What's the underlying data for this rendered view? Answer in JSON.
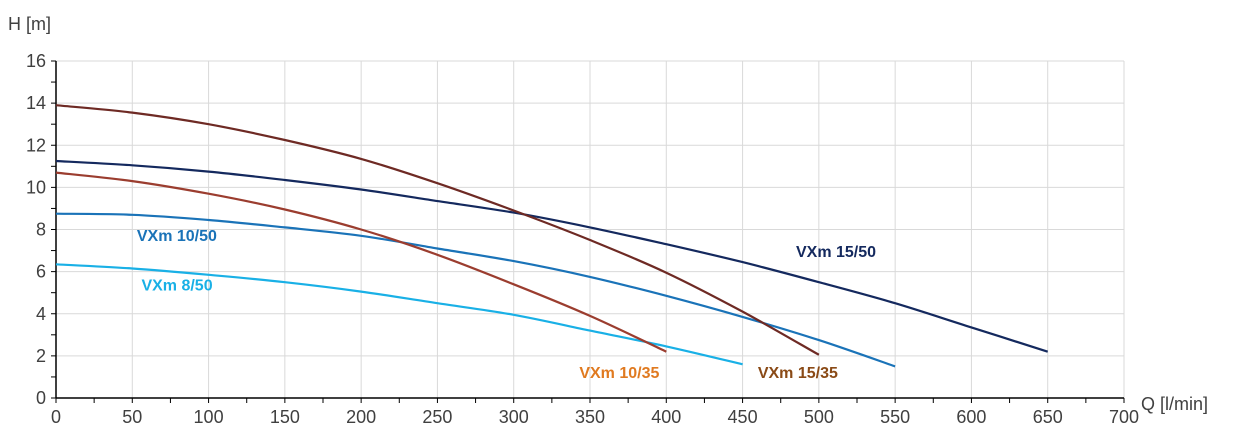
{
  "chart_data": {
    "type": "line",
    "xlabel": "Q [l/min]",
    "ylabel": "H [m]",
    "xlim": [
      0,
      700
    ],
    "ylim": [
      0,
      16
    ],
    "x_ticks": [
      "0",
      "50",
      "100",
      "150",
      "200",
      "250",
      "300",
      "350",
      "400",
      "450",
      "500",
      "550",
      "600",
      "650",
      "700"
    ],
    "y_ticks": [
      "0",
      "2",
      "4",
      "6",
      "8",
      "10",
      "12",
      "14",
      "16"
    ],
    "grid": true,
    "series": [
      {
        "name": "VXm 8/50",
        "color": "#19b0e6",
        "x": [
          0,
          50,
          100,
          150,
          200,
          250,
          300,
          350,
          400,
          450
        ],
        "y": [
          6.35,
          6.15,
          5.85,
          5.5,
          5.05,
          4.5,
          3.95,
          3.2,
          2.45,
          1.6
        ]
      },
      {
        "name": "VXm 10/50",
        "color": "#1a73b8",
        "x": [
          0,
          50,
          100,
          150,
          200,
          250,
          300,
          350,
          400,
          450,
          500,
          550
        ],
        "y": [
          8.75,
          8.7,
          8.45,
          8.1,
          7.7,
          7.1,
          6.5,
          5.75,
          4.85,
          3.85,
          2.75,
          1.5
        ]
      },
      {
        "name": "VXm 15/50",
        "color": "#14295e",
        "x": [
          0,
          50,
          100,
          150,
          200,
          250,
          300,
          350,
          400,
          450,
          500,
          550,
          600,
          650
        ],
        "y": [
          11.25,
          11.05,
          10.75,
          10.35,
          9.9,
          9.35,
          8.8,
          8.1,
          7.3,
          6.45,
          5.5,
          4.5,
          3.35,
          2.2
        ]
      },
      {
        "name": "VXm 10/35",
        "color": "#9b3d2f",
        "x": [
          0,
          50,
          100,
          150,
          200,
          250,
          300,
          350,
          400
        ],
        "y": [
          10.7,
          10.3,
          9.7,
          8.95,
          8.0,
          6.8,
          5.4,
          3.9,
          2.2
        ]
      },
      {
        "name": "VXm 15/35",
        "color": "#6e2a24",
        "x": [
          0,
          50,
          100,
          150,
          200,
          250,
          300,
          350,
          400,
          450,
          500
        ],
        "y": [
          13.9,
          13.55,
          13.0,
          12.25,
          11.35,
          10.2,
          8.9,
          7.5,
          5.95,
          4.1,
          2.05
        ]
      }
    ],
    "labels": [
      {
        "text": "VXm 8/50",
        "color": "#19b0e6",
        "x": 56,
        "y": 5.1
      },
      {
        "text": "VXm 10/50",
        "color": "#1a73b8",
        "x": 53,
        "y": 7.45
      },
      {
        "text": "VXm 15/50",
        "color": "#14295e",
        "x": 485,
        "y": 6.7
      },
      {
        "text": "VXm 10/35",
        "color": "#e07a20",
        "x": 343,
        "y": 0.95
      },
      {
        "text": "VXm 15/35",
        "color": "#8a4a16",
        "x": 460,
        "y": 0.95
      }
    ]
  }
}
